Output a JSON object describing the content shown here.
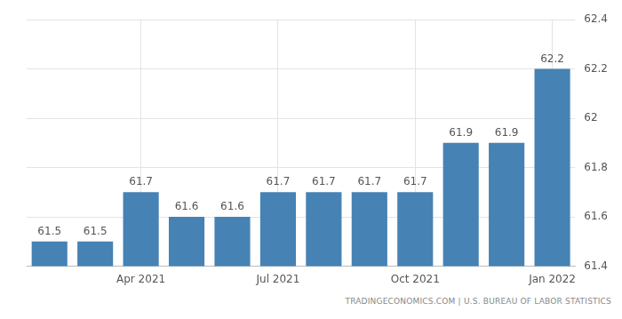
{
  "chart_data": {
    "type": "bar",
    "categories": [
      null,
      null,
      "Apr 2021",
      null,
      null,
      "Jul 2021",
      null,
      null,
      "Oct 2021",
      null,
      null,
      "Jan 2022"
    ],
    "values": [
      61.5,
      61.5,
      61.7,
      61.6,
      61.6,
      61.7,
      61.7,
      61.7,
      61.7,
      61.9,
      61.9,
      62.2
    ],
    "color": "#4682b4",
    "ylim": [
      61.4,
      62.4
    ],
    "yticks": [
      61.4,
      61.6,
      61.8,
      62,
      62.2,
      62.4
    ],
    "grid": true,
    "data_labels": true,
    "source": "TRADINGECONOMICS.COM | U.S. BUREAU OF LABOR STATISTICS"
  }
}
